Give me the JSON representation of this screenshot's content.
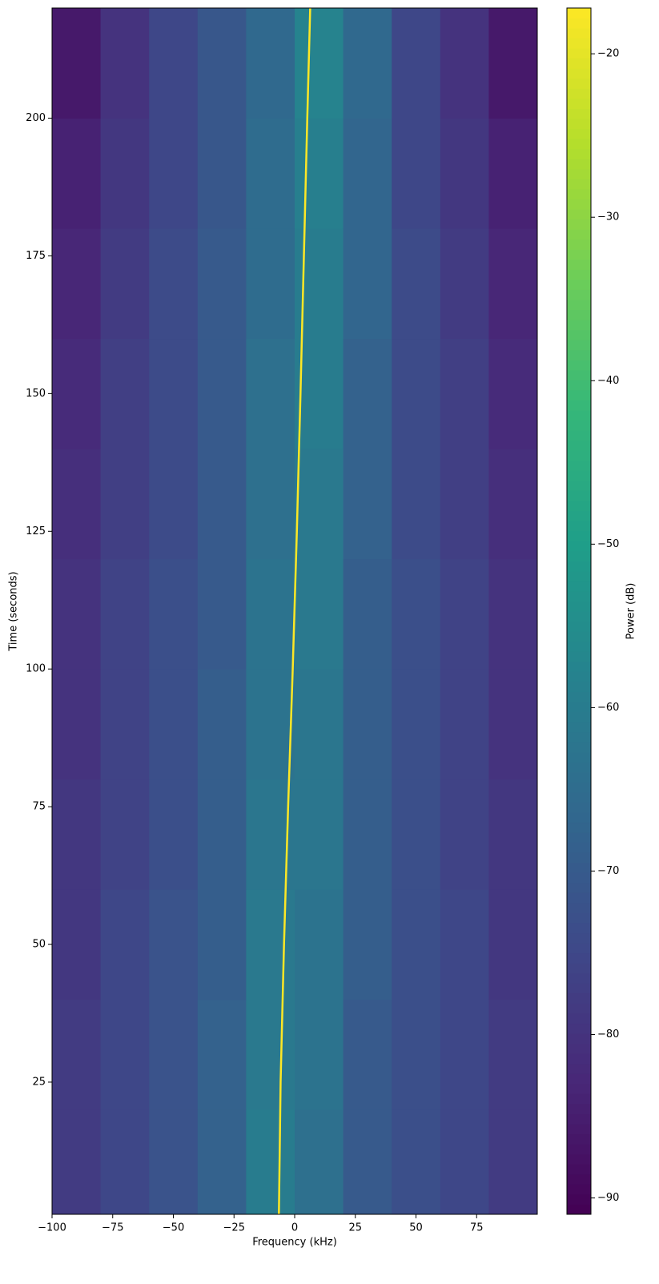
{
  "chart_data": {
    "type": "heatmap",
    "xlabel": "Frequency (kHz)",
    "ylabel": "Time (seconds)",
    "colorbar_label": "Power (dB)",
    "colormap": "viridis",
    "xlim": [
      -100,
      100
    ],
    "ylim": [
      1,
      220
    ],
    "clim": [
      -91,
      -17.2
    ],
    "xticks": [
      {
        "value": -100,
        "label": "−100"
      },
      {
        "value": -75,
        "label": "−75"
      },
      {
        "value": -50,
        "label": "−50"
      },
      {
        "value": -25,
        "label": "−25"
      },
      0,
      25,
      50,
      75
    ],
    "yticks": [
      25,
      50,
      75,
      100,
      125,
      150,
      175,
      200
    ],
    "cticks": [
      {
        "value": -90,
        "label": "−90"
      },
      {
        "value": -80,
        "label": "−80"
      },
      {
        "value": -70,
        "label": "−70"
      },
      {
        "value": -60,
        "label": "−60"
      },
      {
        "value": -50,
        "label": "−50"
      },
      {
        "value": -40,
        "label": "−40"
      },
      {
        "value": -30,
        "label": "−30"
      },
      {
        "value": -20,
        "label": "−20"
      }
    ],
    "x": [
      -90,
      -70,
      -50,
      -30,
      -10,
      10,
      30,
      50,
      70,
      90
    ],
    "y": [
      10,
      30,
      50,
      70,
      90,
      110,
      130,
      150,
      170,
      190,
      210
    ],
    "z": [
      [
        -78,
        -75,
        -72,
        -68,
        -60,
        -64,
        -70,
        -73,
        -75,
        -78
      ],
      [
        -78,
        -75,
        -72,
        -68,
        -61,
        -63,
        -70,
        -73,
        -75,
        -78
      ],
      [
        -79,
        -75,
        -72,
        -69,
        -61,
        -63,
        -69,
        -73,
        -75,
        -79
      ],
      [
        -79,
        -76,
        -73,
        -69,
        -62,
        -62,
        -69,
        -73,
        -76,
        -79
      ],
      [
        -80,
        -76,
        -73,
        -69,
        -63,
        -62,
        -69,
        -73,
        -76,
        -80
      ],
      [
        -80,
        -76,
        -73,
        -70,
        -63,
        -61,
        -69,
        -73,
        -76,
        -80
      ],
      [
        -81,
        -77,
        -74,
        -70,
        -64,
        -61,
        -68,
        -74,
        -77,
        -81
      ],
      [
        -82,
        -77,
        -74,
        -70,
        -64,
        -60,
        -68,
        -74,
        -77,
        -82
      ],
      [
        -83,
        -78,
        -74,
        -70,
        -65,
        -60,
        -67,
        -74,
        -78,
        -83
      ],
      [
        -84,
        -79,
        -75,
        -71,
        -65,
        -59,
        -67,
        -75,
        -79,
        -84
      ],
      [
        -86,
        -80,
        -75,
        -71,
        -66,
        -58,
        -66,
        -75,
        -80,
        -86
      ]
    ],
    "signal": {
      "color": "#fde725",
      "time": [
        1,
        25,
        50,
        75,
        100,
        125,
        150,
        175,
        200,
        220
      ],
      "frequency": [
        -6.5,
        -5.8,
        -4.4,
        -2.7,
        -0.8,
        0.9,
        2.4,
        3.8,
        5.2,
        6.4
      ]
    }
  }
}
